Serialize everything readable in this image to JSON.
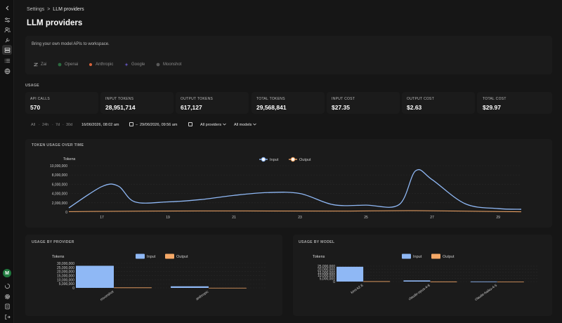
{
  "breadcrumb": {
    "parent": "Settings",
    "separator": ">",
    "current": "LLM providers"
  },
  "page_title": "LLM providers",
  "providers": {
    "subtitle": "Bring your own model APIs to workspace.",
    "tabs": [
      {
        "label": "Zai",
        "icon": "zai-logo-icon",
        "color": "#9a9a9a"
      },
      {
        "label": "Openai",
        "icon": "openai-logo-icon",
        "color": "#2b6b3f"
      },
      {
        "label": "Anthropic",
        "icon": "anthropic-logo-icon",
        "color": "#d4623a"
      },
      {
        "label": "Google",
        "icon": "google-logo-icon",
        "color": "#6a5acd"
      },
      {
        "label": "Moonshot",
        "icon": "moonshot-logo-icon",
        "color": "#7a7a7a"
      }
    ]
  },
  "usage": {
    "label": "USAGE",
    "stats": [
      {
        "label": "API CALLS",
        "value": "570"
      },
      {
        "label": "INPUT TOKENS",
        "value": "28,951,714"
      },
      {
        "label": "OUTPUT TOKENS",
        "value": "617,127"
      },
      {
        "label": "TOTAL TOKENS",
        "value": "29,568,841"
      },
      {
        "label": "INPUT COST",
        "value": "$27.35"
      },
      {
        "label": "OUTPUT COST",
        "value": "$2.63"
      },
      {
        "label": "TOTAL COST",
        "value": "$29.97"
      }
    ]
  },
  "filters": {
    "ranges": [
      "All",
      "24h",
      "7d",
      "30d"
    ],
    "separator": "·",
    "from": "16/06/2026, 08:02 am",
    "to": "29/06/2026, 09:56 am",
    "dash": "–",
    "provider_select": "All providers",
    "model_select": "All models"
  },
  "colors": {
    "input": "#8fb8f5",
    "output": "#f5a867",
    "grid": "#2a2a2a"
  },
  "chart_data": [
    {
      "type": "line",
      "title": "TOKEN USAGE OVER TIME",
      "ylabel": "Tokens",
      "ylim": [
        0,
        10000000
      ],
      "yticks": [
        "10,000,000",
        "8,000,000",
        "6,000,000",
        "4,000,000",
        "2,000,000",
        "0"
      ],
      "x_ticks": [
        "17",
        "19",
        "21",
        "23",
        "25",
        "27",
        "29"
      ],
      "legend": "top-center",
      "series": [
        {
          "name": "Input",
          "x": [
            16,
            17,
            17.5,
            18,
            19,
            20,
            21,
            22,
            23,
            24,
            25,
            26,
            26.5,
            27,
            28,
            29,
            29.7
          ],
          "values": [
            900000,
            5500000,
            5600000,
            2200000,
            2200000,
            2700000,
            3600000,
            4200000,
            4000000,
            1600000,
            1500000,
            1600000,
            8900000,
            7000000,
            1800000,
            750000,
            600000
          ]
        },
        {
          "name": "Output",
          "x": [
            16,
            20,
            24,
            26.5,
            29.7
          ],
          "values": [
            100000,
            250000,
            200000,
            300000,
            50000
          ]
        }
      ]
    },
    {
      "type": "bar",
      "title": "USAGE BY PROVIDER",
      "ylabel": "Tokens",
      "ylim": [
        0,
        30000000
      ],
      "yticks": [
        "30,000,000",
        "25,000,000",
        "20,000,000",
        "15,000,000",
        "10,000,000",
        "5,000,000",
        "0"
      ],
      "categories": [
        "moonshot",
        "anthropic"
      ],
      "legend": "top-center",
      "series": [
        {
          "name": "Input",
          "values": [
            27000000,
            1900000
          ]
        },
        {
          "name": "Output",
          "values": [
            500000,
            100000
          ]
        }
      ]
    },
    {
      "type": "bar",
      "title": "USAGE BY MODEL",
      "ylabel": "Tokens",
      "ylim": [
        0,
        25000000
      ],
      "yticks": [
        "25,000,000",
        "20,000,000",
        "15,000,000",
        "10,000,000",
        "5,000,000",
        "0"
      ],
      "categories": [
        "kimi-k2.6",
        "claude-opus-4-6",
        "claude-haiku-4-5"
      ],
      "legend": "top-center",
      "series": [
        {
          "name": "Input",
          "values": [
            24000000,
            1800000,
            100000
          ]
        },
        {
          "name": "Output",
          "values": [
            500000,
            100000,
            30000
          ]
        }
      ]
    }
  ]
}
